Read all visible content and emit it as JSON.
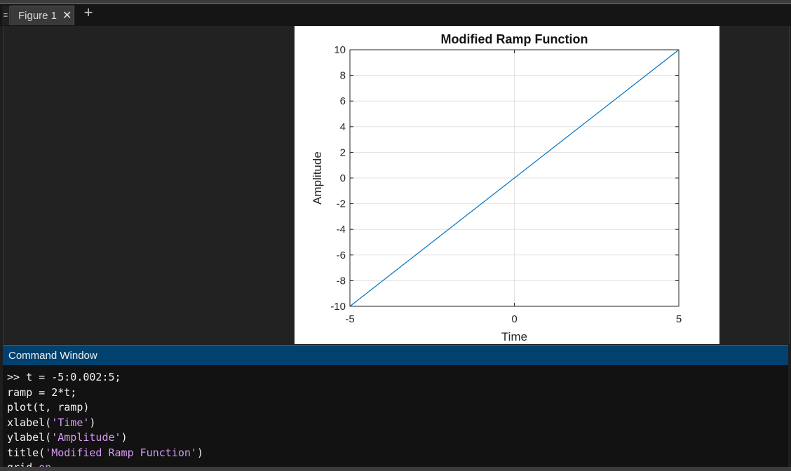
{
  "tabs": {
    "menu_glyph": "≡",
    "figure_label": "Figure 1",
    "close_glyph": "✕",
    "add_glyph": "+"
  },
  "figure": {
    "chart_data": {
      "type": "line",
      "title": "Modified Ramp Function",
      "xlabel": "Time",
      "ylabel": "Amplitude",
      "xlim": [
        -5,
        5
      ],
      "ylim": [
        -10,
        10
      ],
      "xticks": [
        -5,
        0,
        5
      ],
      "yticks": [
        -10,
        -8,
        -6,
        -4,
        -2,
        0,
        2,
        4,
        6,
        8,
        10
      ],
      "grid": true,
      "series": [
        {
          "x": [
            -5,
            5
          ],
          "y": [
            -10,
            10
          ],
          "color": "#0072bd"
        }
      ]
    }
  },
  "command_window": {
    "title": "Command Window",
    "lines": [
      [
        {
          "t": ">> t = -5:0.002:5;"
        }
      ],
      [
        {
          "t": "ramp = 2*t;"
        }
      ],
      [
        {
          "t": "plot(t, ramp)"
        }
      ],
      [
        {
          "t": "xlabel("
        },
        {
          "t": "'Time'",
          "s": true
        },
        {
          "t": ")"
        }
      ],
      [
        {
          "t": "ylabel("
        },
        {
          "t": "'Amplitude'",
          "s": true
        },
        {
          "t": ")"
        }
      ],
      [
        {
          "t": "title("
        },
        {
          "t": "'Modified Ramp Function'",
          "s": true
        },
        {
          "t": ")"
        }
      ],
      [
        {
          "t": "grid "
        },
        {
          "t": "on",
          "s": true
        }
      ]
    ]
  }
}
